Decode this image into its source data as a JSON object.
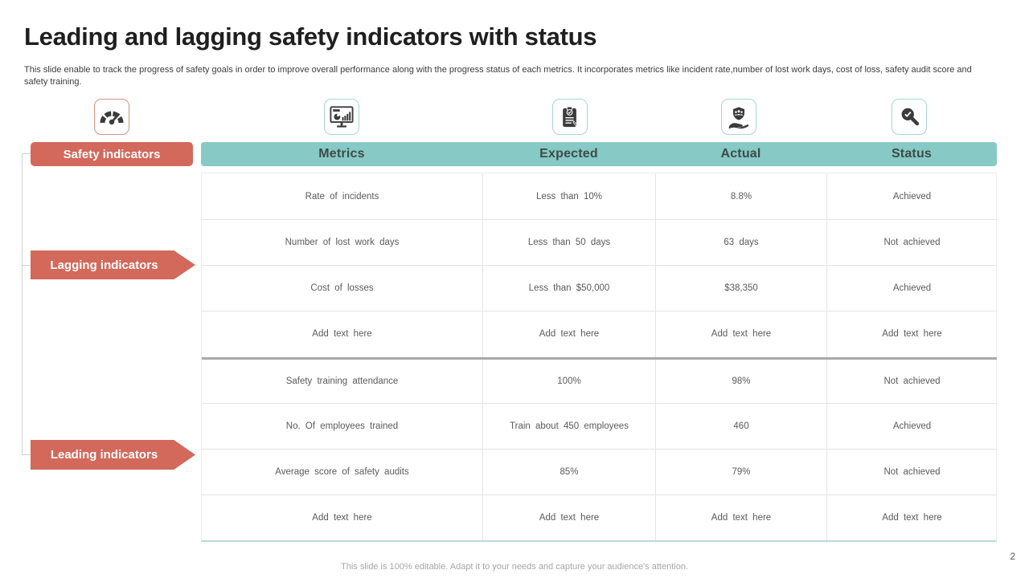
{
  "slide": {
    "title": "Leading and lagging safety indicators with status",
    "subtitle": "This slide enable to track the progress of safety goals in order to improve overall performance along with the progress status of each metrics. It incorporates metrics like incident rate,number of lost work days, cost of loss, safety audit score and safety training.",
    "footer": "This slide is 100% editable. Adapt it to your needs and capture your audience's attention.",
    "page_number": "2"
  },
  "colors": {
    "accent_red": "#d2695b",
    "accent_teal": "#87c9c4",
    "icon_ink": "#3b3b3b"
  },
  "sidebar": {
    "safety_label": "Safety indicators",
    "lagging_label": "Lagging indicators",
    "leading_label": "Leading indicators"
  },
  "icons": [
    "gauge-icon",
    "monitor-chart-icon",
    "clipboard-check-icon",
    "hand-shield-icon",
    "magnifier-check-icon"
  ],
  "table": {
    "headers": [
      "Metrics",
      "Expected",
      "Actual",
      "Status"
    ],
    "rows": [
      [
        "Rate of incidents",
        "Less than 10%",
        "8.8%",
        "Achieved"
      ],
      [
        "Number of lost work days",
        "Less than 50 days",
        "63 days",
        "Not achieved"
      ],
      [
        "Cost of losses",
        "Less than $50,000",
        "$38,350",
        "Achieved"
      ],
      [
        "Add text here",
        "Add text here",
        "Add text here",
        "Add text here"
      ],
      [
        "Safety training attendance",
        "100%",
        "98%",
        "Not achieved"
      ],
      [
        "No. Of employees trained",
        "Train about 450 employees",
        "460",
        "Achieved"
      ],
      [
        "Average score of safety audits",
        "85%",
        "79%",
        "Not achieved"
      ],
      [
        "Add text here",
        "Add text here",
        "Add text here",
        "Add text here"
      ]
    ],
    "section_break_row_index": 4
  }
}
